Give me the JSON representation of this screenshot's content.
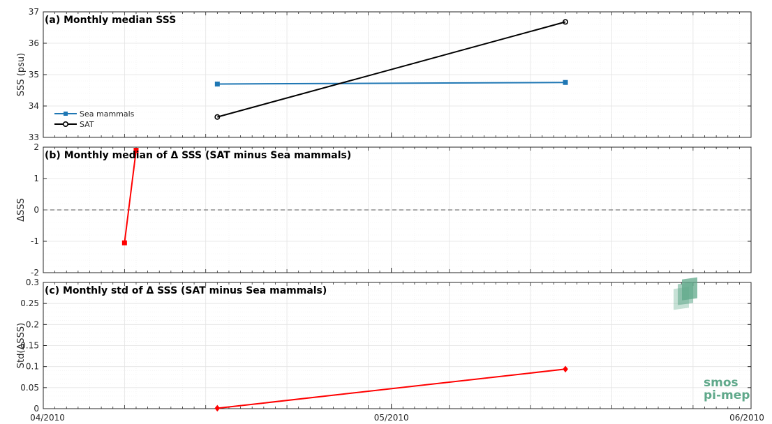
{
  "chart_data": [
    {
      "panel": "a",
      "type": "line",
      "title": "(a) Monthly median SSS",
      "ylabel": "SSS (psu)",
      "xlabel": "",
      "ylim": [
        33,
        37
      ],
      "yticks": [
        33,
        34,
        35,
        36,
        37
      ],
      "x_domain": [
        "2010-04-01",
        "2010-06-01"
      ],
      "grid": true,
      "legend": "left",
      "series": [
        {
          "name": "Sea mammals",
          "color": "#1f77b4",
          "marker": "square",
          "x": [
            "2010-04-16",
            "2010-05-16"
          ],
          "y": [
            34.7,
            34.75
          ]
        },
        {
          "name": "SAT",
          "color": "#000000",
          "marker": "circle",
          "x": [
            "2010-04-16",
            "2010-05-16"
          ],
          "y": [
            33.65,
            36.68
          ]
        }
      ]
    },
    {
      "panel": "b",
      "type": "line",
      "title": "(b) Monthly median of Δ SSS (SAT minus Sea mammals)",
      "ylabel": "ΔSSS",
      "xlabel": "",
      "ylim": [
        -2,
        2
      ],
      "yticks": [
        -2,
        -1,
        0,
        1,
        2
      ],
      "x_domain": [
        "2010-04-01",
        "2010-06-01"
      ],
      "grid": true,
      "zero_line": true,
      "series": [
        {
          "color": "#ff0000",
          "marker": "square",
          "x": [
            "2010-04-08",
            "2010-04-09"
          ],
          "y": [
            -1.05,
            1.9
          ]
        }
      ]
    },
    {
      "panel": "c",
      "type": "line",
      "title": "(c) Monthly std of Δ SSS (SAT minus Sea mammals)",
      "ylabel": "Std(ΔSSS)",
      "xlabel": "",
      "ylim": [
        0,
        0.3
      ],
      "yticks": [
        0,
        0.05,
        0.1,
        0.15,
        0.2,
        0.25,
        0.3
      ],
      "ytick_labels": [
        "0",
        "0.05",
        "0.1",
        "0.15",
        "0.2",
        "0.25",
        "0.3"
      ],
      "x_domain": [
        "2010-04-01",
        "2010-06-01"
      ],
      "xticks": [
        {
          "date": "2010-04-01",
          "label": "04/2010"
        },
        {
          "date": "2010-05-01",
          "label": "05/2010"
        },
        {
          "date": "2010-06-01",
          "label": "06/2010"
        }
      ],
      "grid": true,
      "series": [
        {
          "color": "#ff0000",
          "marker": "diamond",
          "x": [
            "2010-04-16",
            "2010-05-16"
          ],
          "y": [
            0.001,
            0.094
          ]
        }
      ]
    }
  ],
  "logo": {
    "line1": "smos",
    "line2": "pi-mep"
  },
  "colors": {
    "axis": "#262626",
    "grid": "#e3e3e3",
    "minor_grid": "#efefef",
    "zero_line": "#555555",
    "logo": "#5fa88a"
  }
}
